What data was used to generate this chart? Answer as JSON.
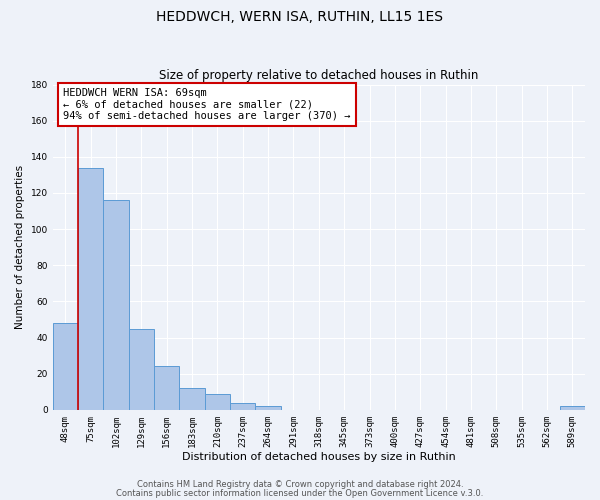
{
  "title": "HEDDWCH, WERN ISA, RUTHIN, LL15 1ES",
  "subtitle": "Size of property relative to detached houses in Ruthin",
  "xlabel": "Distribution of detached houses by size in Ruthin",
  "ylabel": "Number of detached properties",
  "bar_labels": [
    "48sqm",
    "75sqm",
    "102sqm",
    "129sqm",
    "156sqm",
    "183sqm",
    "210sqm",
    "237sqm",
    "264sqm",
    "291sqm",
    "318sqm",
    "345sqm",
    "373sqm",
    "400sqm",
    "427sqm",
    "454sqm",
    "481sqm",
    "508sqm",
    "535sqm",
    "562sqm",
    "589sqm"
  ],
  "bar_values": [
    48,
    134,
    116,
    45,
    24,
    12,
    9,
    4,
    2,
    0,
    0,
    0,
    0,
    0,
    0,
    0,
    0,
    0,
    0,
    0,
    2
  ],
  "bar_color": "#aec6e8",
  "bar_edge_color": "#5b9bd5",
  "ylim": [
    0,
    180
  ],
  "yticks": [
    0,
    20,
    40,
    60,
    80,
    100,
    120,
    140,
    160,
    180
  ],
  "vline_color": "#cc0000",
  "annotation_title": "HEDDWCH WERN ISA: 69sqm",
  "annotation_line1": "← 6% of detached houses are smaller (22)",
  "annotation_line2": "94% of semi-detached houses are larger (370) →",
  "annotation_box_color": "#cc0000",
  "footer_line1": "Contains HM Land Registry data © Crown copyright and database right 2024.",
  "footer_line2": "Contains public sector information licensed under the Open Government Licence v.3.0.",
  "background_color": "#eef2f9",
  "grid_color": "#ffffff",
  "title_fontsize": 10,
  "subtitle_fontsize": 8.5,
  "xlabel_fontsize": 8,
  "ylabel_fontsize": 7.5,
  "tick_fontsize": 6.5,
  "annotation_fontsize": 7.5,
  "footer_fontsize": 6
}
